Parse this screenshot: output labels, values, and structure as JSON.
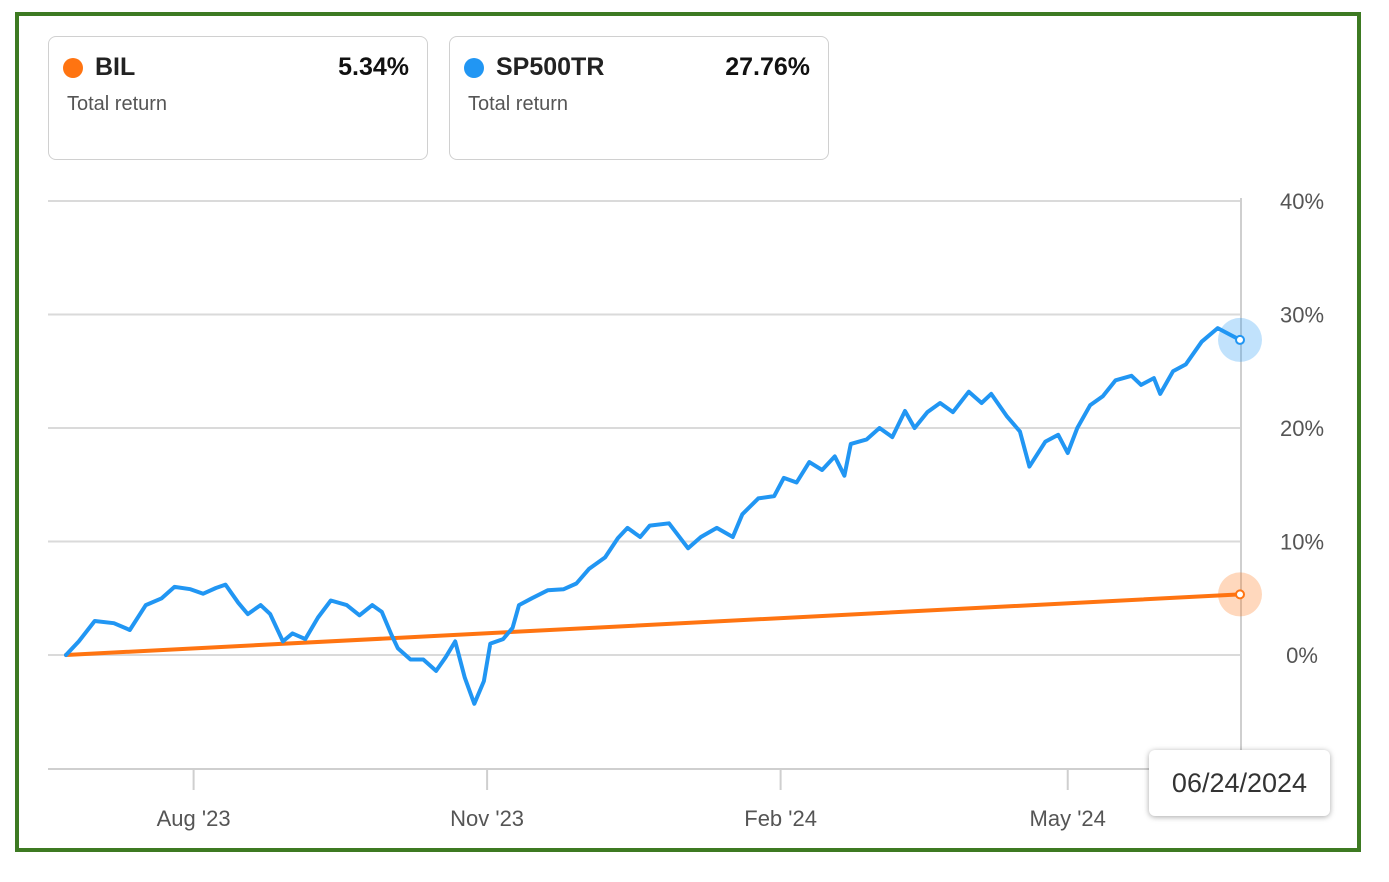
{
  "legend": [
    {
      "name": "BIL",
      "value": "5.34%",
      "sublabel": "Total return",
      "color": "#ff7411"
    },
    {
      "name": "SP500TR",
      "value": "27.76%",
      "sublabel": "Total return",
      "color": "#2196f3"
    }
  ],
  "tooltip": {
    "date": "06/24/2024"
  },
  "chart_data": {
    "type": "line",
    "x_range": [
      "2023-06-22",
      "2024-06-24"
    ],
    "ylim": [
      -10,
      40
    ],
    "y_ticks": [
      {
        "value": 40,
        "label": "40%"
      },
      {
        "value": 30,
        "label": "30%"
      },
      {
        "value": 20,
        "label": "20%"
      },
      {
        "value": 10,
        "label": "10%"
      },
      {
        "value": 0,
        "label": "0%"
      }
    ],
    "x_ticks": [
      {
        "date": "2023-08-01",
        "label": "Aug '23"
      },
      {
        "date": "2023-11-01",
        "label": "Nov '23"
      },
      {
        "date": "2024-02-01",
        "label": "Feb '24"
      },
      {
        "date": "2024-05-01",
        "label": "May '24"
      }
    ],
    "grid": true,
    "series": [
      {
        "name": "BIL",
        "color": "#ff7411",
        "points": [
          [
            "2023-06-22",
            0.0
          ],
          [
            "2024-06-24",
            5.34
          ]
        ]
      },
      {
        "name": "SP500TR",
        "color": "#2196f3",
        "points": [
          [
            "2023-06-22",
            0.0
          ],
          [
            "2023-06-26",
            1.2
          ],
          [
            "2023-07-01",
            3.0
          ],
          [
            "2023-07-07",
            2.8
          ],
          [
            "2023-07-12",
            2.2
          ],
          [
            "2023-07-17",
            4.4
          ],
          [
            "2023-07-22",
            5.0
          ],
          [
            "2023-07-26",
            6.0
          ],
          [
            "2023-07-31",
            5.8
          ],
          [
            "2023-08-04",
            5.4
          ],
          [
            "2023-08-08",
            5.9
          ],
          [
            "2023-08-11",
            6.2
          ],
          [
            "2023-08-15",
            4.6
          ],
          [
            "2023-08-18",
            3.6
          ],
          [
            "2023-08-22",
            4.4
          ],
          [
            "2023-08-25",
            3.6
          ],
          [
            "2023-08-29",
            1.2
          ],
          [
            "2023-09-01",
            1.9
          ],
          [
            "2023-09-05",
            1.4
          ],
          [
            "2023-09-09",
            3.3
          ],
          [
            "2023-09-13",
            4.8
          ],
          [
            "2023-09-18",
            4.4
          ],
          [
            "2023-09-22",
            3.5
          ],
          [
            "2023-09-26",
            4.4
          ],
          [
            "2023-09-29",
            3.8
          ],
          [
            "2023-10-02",
            1.8
          ],
          [
            "2023-10-04",
            0.6
          ],
          [
            "2023-10-08",
            -0.4
          ],
          [
            "2023-10-12",
            -0.4
          ],
          [
            "2023-10-16",
            -1.4
          ],
          [
            "2023-10-19",
            -0.2
          ],
          [
            "2023-10-22",
            1.2
          ],
          [
            "2023-10-25",
            -2.0
          ],
          [
            "2023-10-28",
            -4.3
          ],
          [
            "2023-10-31",
            -2.3
          ],
          [
            "2023-11-02",
            1.0
          ],
          [
            "2023-11-06",
            1.4
          ],
          [
            "2023-11-09",
            2.4
          ],
          [
            "2023-11-11",
            4.4
          ],
          [
            "2023-11-15",
            5.0
          ],
          [
            "2023-11-20",
            5.7
          ],
          [
            "2023-11-25",
            5.8
          ],
          [
            "2023-11-29",
            6.3
          ],
          [
            "2023-12-03",
            7.6
          ],
          [
            "2023-12-08",
            8.6
          ],
          [
            "2023-12-12",
            10.3
          ],
          [
            "2023-12-15",
            11.2
          ],
          [
            "2023-12-19",
            10.4
          ],
          [
            "2023-12-22",
            11.4
          ],
          [
            "2023-12-28",
            11.6
          ],
          [
            "2024-01-03",
            9.4
          ],
          [
            "2024-01-07",
            10.4
          ],
          [
            "2024-01-12",
            11.2
          ],
          [
            "2024-01-17",
            10.4
          ],
          [
            "2024-01-20",
            12.4
          ],
          [
            "2024-01-25",
            13.8
          ],
          [
            "2024-01-30",
            14.0
          ],
          [
            "2024-02-02",
            15.6
          ],
          [
            "2024-02-06",
            15.2
          ],
          [
            "2024-02-10",
            17.0
          ],
          [
            "2024-02-14",
            16.3
          ],
          [
            "2024-02-18",
            17.5
          ],
          [
            "2024-02-21",
            15.8
          ],
          [
            "2024-02-23",
            18.6
          ],
          [
            "2024-02-28",
            19.0
          ],
          [
            "2024-03-03",
            20.0
          ],
          [
            "2024-03-07",
            19.2
          ],
          [
            "2024-03-11",
            21.5
          ],
          [
            "2024-03-14",
            20.0
          ],
          [
            "2024-03-18",
            21.4
          ],
          [
            "2024-03-22",
            22.2
          ],
          [
            "2024-03-26",
            21.4
          ],
          [
            "2024-03-31",
            23.2
          ],
          [
            "2024-04-04",
            22.2
          ],
          [
            "2024-04-07",
            23.0
          ],
          [
            "2024-04-12",
            21.0
          ],
          [
            "2024-04-16",
            19.7
          ],
          [
            "2024-04-19",
            16.6
          ],
          [
            "2024-04-24",
            18.8
          ],
          [
            "2024-04-28",
            19.4
          ],
          [
            "2024-05-01",
            17.8
          ],
          [
            "2024-05-04",
            20.0
          ],
          [
            "2024-05-08",
            22.0
          ],
          [
            "2024-05-12",
            22.8
          ],
          [
            "2024-05-16",
            24.2
          ],
          [
            "2024-05-21",
            24.6
          ],
          [
            "2024-05-24",
            23.8
          ],
          [
            "2024-05-28",
            24.4
          ],
          [
            "2024-05-30",
            23.0
          ],
          [
            "2024-06-03",
            25.0
          ],
          [
            "2024-06-07",
            25.6
          ],
          [
            "2024-06-12",
            27.6
          ],
          [
            "2024-06-17",
            28.8
          ],
          [
            "2024-06-21",
            28.2
          ],
          [
            "2024-06-24",
            27.76
          ]
        ]
      }
    ]
  }
}
